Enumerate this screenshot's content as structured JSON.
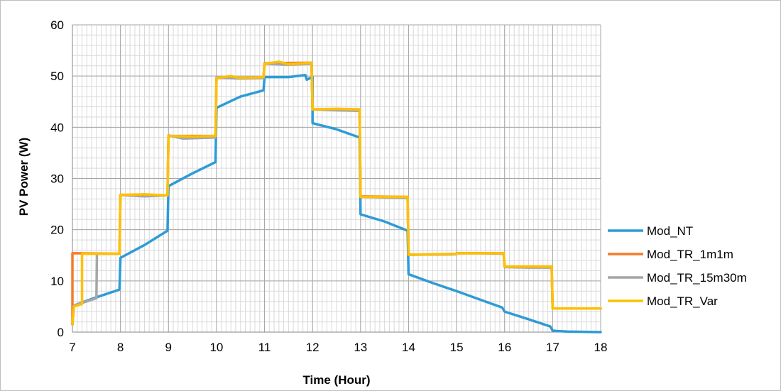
{
  "chart_data": {
    "type": "line",
    "title": "",
    "xlabel": "Time (Hour)",
    "ylabel": "PV Power (W)",
    "xlim": [
      7,
      18
    ],
    "ylim": [
      0,
      60
    ],
    "x_ticks": [
      7,
      8,
      9,
      10,
      11,
      12,
      13,
      14,
      15,
      16,
      17,
      18
    ],
    "y_ticks": [
      0,
      10,
      20,
      30,
      40,
      50,
      60
    ],
    "x_minor_step": 0.1,
    "y_minor_step": 2,
    "grid": true,
    "legend_position": "right",
    "series": [
      {
        "name": "Mod_NT",
        "color": "#2e9bd6",
        "points": [
          [
            7.0,
            1.5
          ],
          [
            7.03,
            5.2
          ],
          [
            7.5,
            6.8
          ],
          [
            7.98,
            8.3
          ],
          [
            8.0,
            14.5
          ],
          [
            8.5,
            17.0
          ],
          [
            8.98,
            19.8
          ],
          [
            9.0,
            28.5
          ],
          [
            9.5,
            31.0
          ],
          [
            9.98,
            33.2
          ],
          [
            10.0,
            43.8
          ],
          [
            10.5,
            46.0
          ],
          [
            10.98,
            47.2
          ],
          [
            11.0,
            49.8
          ],
          [
            11.5,
            49.8
          ],
          [
            11.85,
            50.2
          ],
          [
            11.88,
            49.3
          ],
          [
            12.0,
            49.8
          ],
          [
            12.0,
            40.8
          ],
          [
            12.5,
            39.6
          ],
          [
            12.98,
            38.0
          ],
          [
            13.0,
            23.0
          ],
          [
            13.5,
            21.6
          ],
          [
            13.98,
            19.8
          ],
          [
            14.0,
            11.3
          ],
          [
            14.5,
            9.6
          ],
          [
            15.0,
            8.0
          ],
          [
            15.5,
            6.3
          ],
          [
            15.95,
            4.8
          ],
          [
            16.0,
            4.0
          ],
          [
            16.5,
            2.5
          ],
          [
            16.95,
            1.1
          ],
          [
            17.0,
            0.3
          ],
          [
            17.1,
            0.2
          ],
          [
            17.3,
            0.1
          ],
          [
            18.0,
            0.0
          ]
        ]
      },
      {
        "name": "Mod_TR_1m1m",
        "color": "#f47b2a",
        "points": [
          [
            7.0,
            1.5
          ],
          [
            7.0,
            15.4
          ],
          [
            7.05,
            15.4
          ],
          [
            7.98,
            15.3
          ],
          [
            8.0,
            26.8
          ],
          [
            8.98,
            26.7
          ],
          [
            9.0,
            38.3
          ],
          [
            9.98,
            38.3
          ],
          [
            10.0,
            49.6
          ],
          [
            10.98,
            49.7
          ],
          [
            11.0,
            52.5
          ],
          [
            11.98,
            52.6
          ],
          [
            12.0,
            43.5
          ],
          [
            12.98,
            43.5
          ],
          [
            13.0,
            26.5
          ],
          [
            13.98,
            26.4
          ],
          [
            14.0,
            15.1
          ],
          [
            14.98,
            15.2
          ],
          [
            15.0,
            15.4
          ],
          [
            15.98,
            15.4
          ],
          [
            16.0,
            12.8
          ],
          [
            16.98,
            12.8
          ],
          [
            17.0,
            4.6
          ],
          [
            18.0,
            4.6
          ]
        ]
      },
      {
        "name": "Mod_TR_15m30m",
        "color": "#a6a6a6",
        "points": [
          [
            7.0,
            1.5
          ],
          [
            7.03,
            5.2
          ],
          [
            7.5,
            6.6
          ],
          [
            7.51,
            15.3
          ],
          [
            7.98,
            15.3
          ],
          [
            8.0,
            26.8
          ],
          [
            8.5,
            26.5
          ],
          [
            8.98,
            26.7
          ],
          [
            9.0,
            38.4
          ],
          [
            9.3,
            37.8
          ],
          [
            9.98,
            38.0
          ],
          [
            10.0,
            49.7
          ],
          [
            10.5,
            49.5
          ],
          [
            10.98,
            49.6
          ],
          [
            11.0,
            52.4
          ],
          [
            11.5,
            52.2
          ],
          [
            11.98,
            52.4
          ],
          [
            12.0,
            43.5
          ],
          [
            12.5,
            43.3
          ],
          [
            12.98,
            43.2
          ],
          [
            13.0,
            26.4
          ],
          [
            13.5,
            26.3
          ],
          [
            13.98,
            26.2
          ],
          [
            14.0,
            15.1
          ],
          [
            14.98,
            15.2
          ],
          [
            15.0,
            15.4
          ],
          [
            15.5,
            15.4
          ],
          [
            15.98,
            15.3
          ],
          [
            16.0,
            12.7
          ],
          [
            16.5,
            12.6
          ],
          [
            16.98,
            12.6
          ],
          [
            17.0,
            4.6
          ],
          [
            18.0,
            4.6
          ]
        ]
      },
      {
        "name": "Mod_TR_Var",
        "color": "#ffc000",
        "points": [
          [
            7.0,
            1.5
          ],
          [
            7.03,
            5.0
          ],
          [
            7.2,
            5.5
          ],
          [
            7.2,
            15.3
          ],
          [
            7.98,
            15.3
          ],
          [
            8.0,
            26.8
          ],
          [
            8.5,
            26.9
          ],
          [
            8.98,
            26.7
          ],
          [
            9.0,
            38.3
          ],
          [
            9.5,
            38.2
          ],
          [
            9.98,
            38.3
          ],
          [
            10.0,
            49.6
          ],
          [
            10.3,
            50.0
          ],
          [
            10.5,
            49.6
          ],
          [
            10.98,
            49.8
          ],
          [
            11.0,
            52.4
          ],
          [
            11.3,
            52.8
          ],
          [
            11.5,
            52.3
          ],
          [
            11.98,
            52.6
          ],
          [
            12.0,
            43.5
          ],
          [
            12.5,
            43.6
          ],
          [
            12.98,
            43.5
          ],
          [
            13.0,
            26.4
          ],
          [
            13.5,
            26.4
          ],
          [
            13.98,
            26.4
          ],
          [
            14.0,
            15.1
          ],
          [
            14.98,
            15.3
          ],
          [
            15.0,
            15.4
          ],
          [
            15.98,
            15.4
          ],
          [
            16.0,
            12.8
          ],
          [
            16.98,
            12.8
          ],
          [
            17.0,
            4.6
          ],
          [
            18.0,
            4.6
          ]
        ]
      }
    ]
  }
}
